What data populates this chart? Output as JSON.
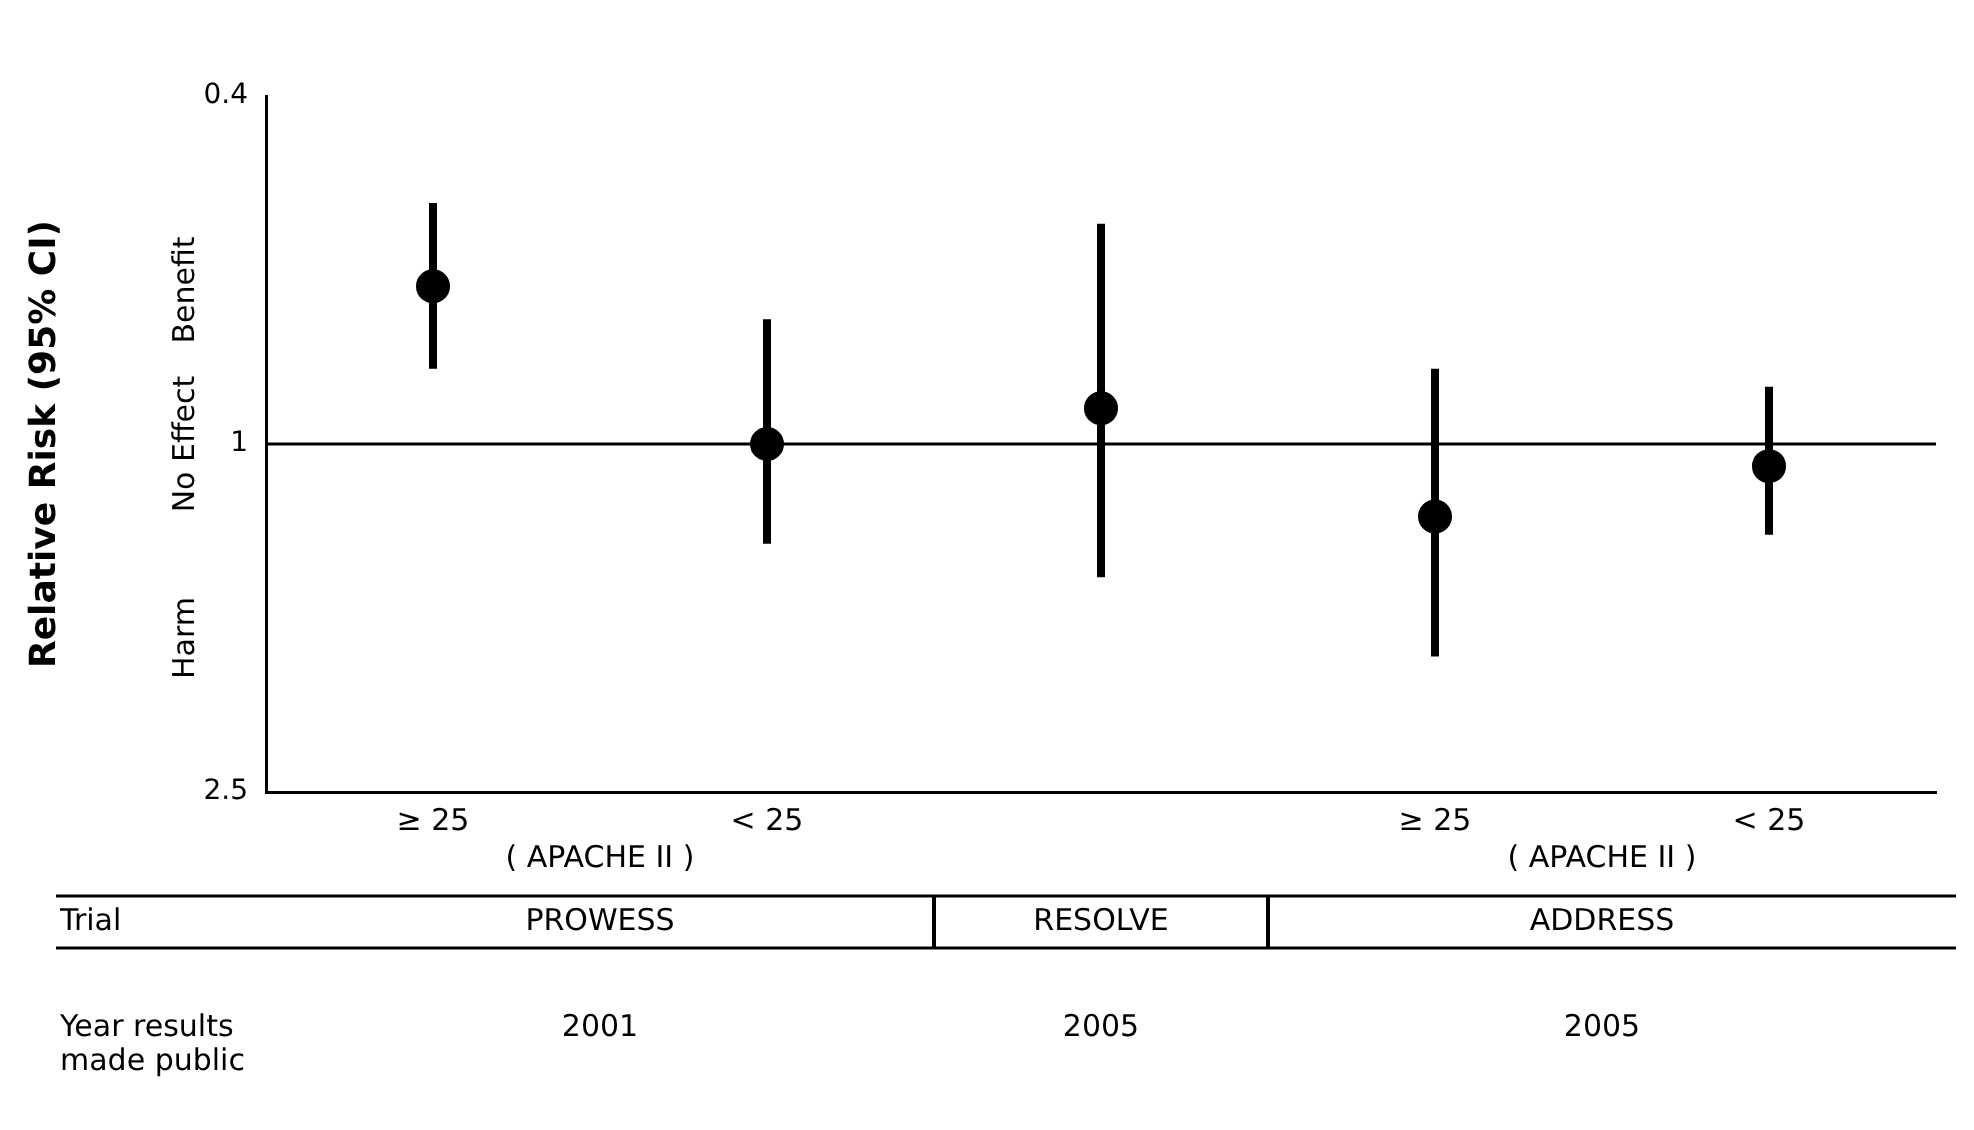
{
  "chart_data": {
    "type": "scatter",
    "ylabel": "Relative Risk (95% CI)",
    "categories": [
      "≥ 25",
      "< 25",
      null,
      "≥ 25",
      "< 25"
    ],
    "values": [
      0.66,
      1.0,
      0.91,
      1.21,
      1.06
    ],
    "errors": [
      [
        0.53,
        0.82
      ],
      [
        0.72,
        1.3
      ],
      [
        0.56,
        1.42
      ],
      [
        0.82,
        1.75
      ],
      [
        0.86,
        1.27
      ]
    ],
    "color": "#000000",
    "marker": "circle",
    "log": "y",
    "ylim": [
      2.5,
      0.4
    ],
    "yticks": [
      0.4,
      1,
      2.5
    ],
    "grid": false,
    "legend": false,
    "ref_lines": [
      {
        "axis": "y",
        "value": 1,
        "color": "#000000"
      }
    ],
    "annotations": [
      "Benefit",
      "No Effect",
      "Harm",
      "( APACHE II )",
      "( APACHE II )",
      "Trial",
      "PROWESS",
      "RESOLVE",
      "ADDRESS",
      "Year results made public",
      "2001",
      "2005",
      "2005"
    ]
  }
}
